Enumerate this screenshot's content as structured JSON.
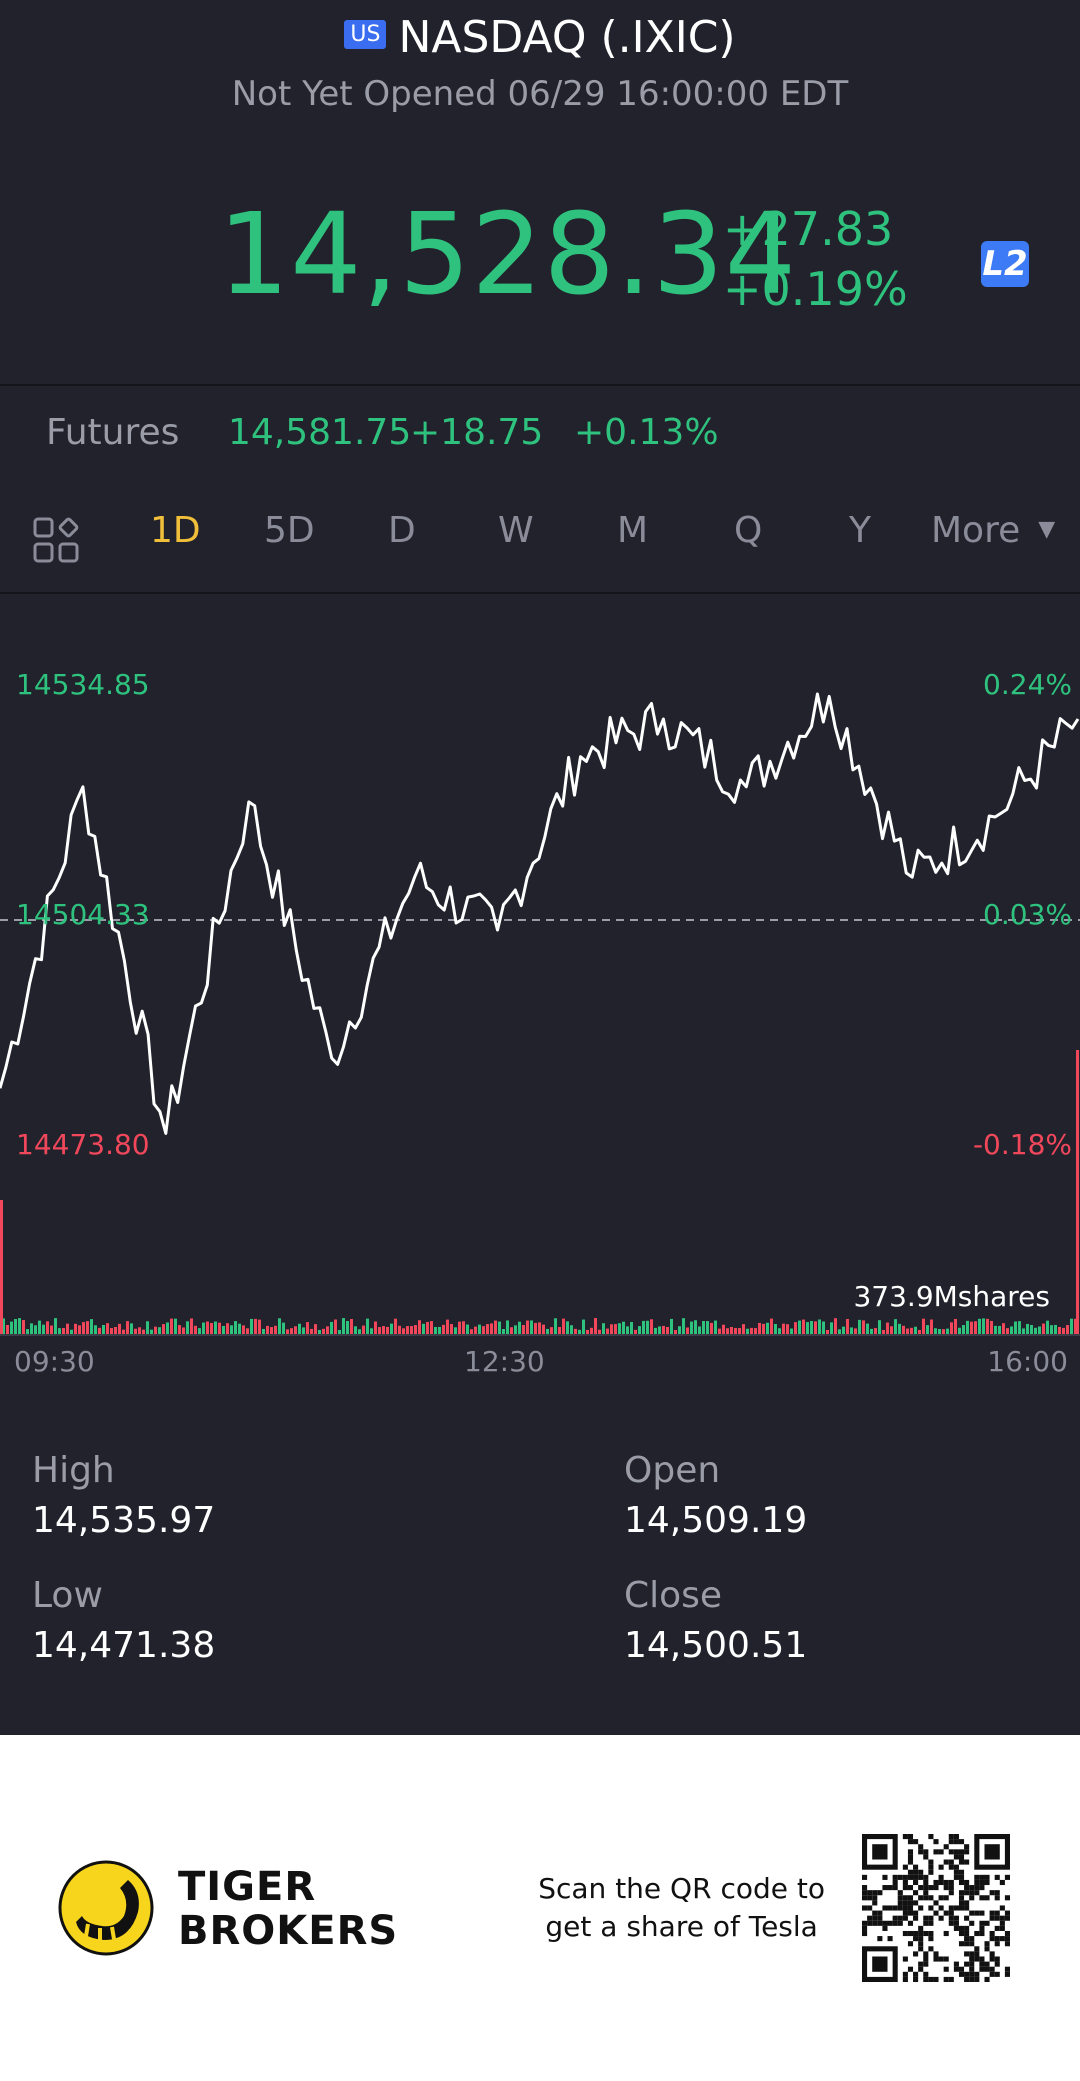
{
  "header": {
    "market_badge": "US",
    "title": "NASDAQ (.IXIC)",
    "status": "Not Yet Opened 06/29 16:00:00 EDT"
  },
  "quote": {
    "price": "14,528.34",
    "change": "+27.83",
    "change_pct": "+0.19%",
    "level2_badge": "L2"
  },
  "futures": {
    "label": "Futures",
    "price": "14,581.75",
    "change": "+18.75",
    "change_pct": "+0.13%"
  },
  "tabs": {
    "layout_icon": "grid-layout-icon",
    "items": [
      "1D",
      "5D",
      "D",
      "W",
      "M",
      "Q",
      "Y"
    ],
    "active": "1D",
    "more_label": "More"
  },
  "chart": {
    "y_high": "14534.85",
    "y_mid": "14504.33",
    "y_low": "14473.80",
    "pct_high": "0.24%",
    "pct_mid": "0.03%",
    "pct_low": "-0.18%",
    "volume_label": "373.9Mshares",
    "time_start": "09:30",
    "time_mid": "12:30",
    "time_end": "16:00",
    "colors": {
      "line": "#ffffff",
      "up": "#2ec27e",
      "down": "#f0475b"
    }
  },
  "chart_data": {
    "type": "line",
    "x": [
      "09:30",
      "10:00",
      "10:30",
      "11:00",
      "11:30",
      "12:00",
      "12:30",
      "13:00",
      "13:30",
      "14:00",
      "14:30",
      "15:00",
      "15:30",
      "16:00"
    ],
    "values": [
      14482,
      14522,
      14476,
      14520,
      14486,
      14510,
      14503,
      14526,
      14531,
      14522,
      14534,
      14510,
      14518,
      14531
    ],
    "reference": 14504.33,
    "ylim": [
      14473.8,
      14534.85
    ]
  },
  "stats": {
    "high_label": "High",
    "high_value": "14,535.97",
    "open_label": "Open",
    "open_value": "14,509.19",
    "low_label": "Low",
    "low_value": "14,471.38",
    "close_label": "Close",
    "close_value": "14,500.51"
  },
  "footer": {
    "brand_line1": "TIGER",
    "brand_line2": "BROKERS",
    "scan_line1": "Scan the QR code to",
    "scan_line2": "get a share of Tesla"
  }
}
